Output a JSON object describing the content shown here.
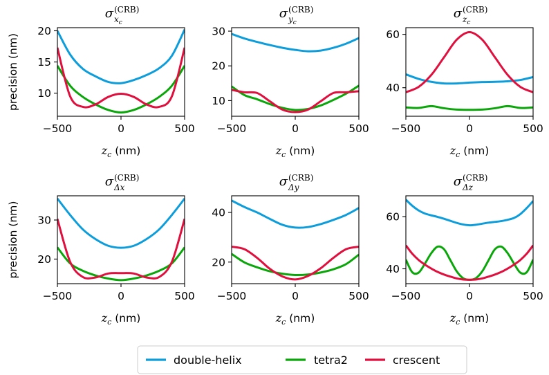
{
  "legend": {
    "placement": "bottom-center",
    "entries": [
      {
        "name": "double-helix",
        "color": "#0d9ddb"
      },
      {
        "name": "tetra2",
        "color": "#0aa60a"
      },
      {
        "name": "crescent",
        "color": "#e0103e"
      }
    ]
  },
  "chart_data": [
    {
      "type": "line",
      "title": {
        "sym": "σ",
        "sub": "x",
        "subsub": "c",
        "sup": "(CRB)"
      },
      "xlabel": {
        "var": "z",
        "varsub": "c",
        "unit": " (nm)"
      },
      "ylabel": "precision (nm)",
      "xlim": [
        -500,
        500
      ],
      "ylim": [
        6.3,
        20.5
      ],
      "xticks": [
        -500,
        0,
        500
      ],
      "xtick_labels": [
        "−500",
        "0",
        "500"
      ],
      "yticks": [
        10,
        15,
        20
      ],
      "ytick_labels": [
        "10",
        "15",
        "20"
      ],
      "x": [
        -500,
        -400,
        -300,
        -200,
        -100,
        0,
        100,
        200,
        300,
        400,
        500
      ],
      "series": [
        {
          "name": "double-helix",
          "values": [
            20.0,
            16.2,
            13.9,
            12.7,
            11.8,
            11.6,
            12.1,
            12.9,
            14.0,
            16.0,
            20.2
          ]
        },
        {
          "name": "tetra2",
          "values": [
            14.4,
            11.2,
            9.4,
            8.2,
            7.3,
            6.9,
            7.3,
            8.2,
            9.4,
            11.2,
            14.4
          ]
        },
        {
          "name": "crescent",
          "values": [
            17.3,
            9.5,
            7.8,
            8.2,
            9.4,
            9.9,
            9.4,
            8.2,
            7.8,
            9.5,
            17.3
          ]
        }
      ]
    },
    {
      "type": "line",
      "title": {
        "sym": "σ",
        "sub": "y",
        "subsub": "c",
        "sup": "(CRB)"
      },
      "xlabel": {
        "var": "z",
        "varsub": "c",
        "unit": " (nm)"
      },
      "ylabel": "",
      "xlim": [
        -500,
        500
      ],
      "ylim": [
        5.5,
        31.0
      ],
      "xticks": [
        -500,
        0,
        500
      ],
      "xtick_labels": [
        "−500",
        "0",
        "500"
      ],
      "yticks": [
        10,
        20,
        30
      ],
      "ytick_labels": [
        "10",
        "20",
        "30"
      ],
      "x": [
        -500,
        -400,
        -300,
        -200,
        -100,
        0,
        100,
        200,
        300,
        400,
        500
      ],
      "series": [
        {
          "name": "double-helix",
          "values": [
            29.2,
            27.9,
            26.9,
            26.0,
            25.2,
            24.6,
            24.2,
            24.4,
            25.2,
            26.4,
            28.0
          ]
        },
        {
          "name": "tetra2",
          "values": [
            14.1,
            11.6,
            10.4,
            9.0,
            7.9,
            7.3,
            7.6,
            8.6,
            10.2,
            12.0,
            14.3
          ]
        },
        {
          "name": "crescent",
          "values": [
            13.1,
            12.4,
            12.2,
            9.8,
            7.4,
            6.7,
            7.4,
            9.8,
            12.2,
            12.4,
            12.7
          ]
        }
      ]
    },
    {
      "type": "line",
      "title": {
        "sym": "σ",
        "sub": "z",
        "subsub": "c",
        "sup": "(CRB)"
      },
      "xlabel": {
        "var": "z",
        "varsub": "c",
        "unit": " (nm)"
      },
      "ylabel": "",
      "xlim": [
        -500,
        500
      ],
      "ylim": [
        29.3,
        62.5
      ],
      "xticks": [
        -500,
        0,
        500
      ],
      "xtick_labels": [
        "−500",
        "0",
        "500"
      ],
      "yticks": [
        40,
        60
      ],
      "ytick_labels": [
        "40",
        "60"
      ],
      "x": [
        -500,
        -400,
        -300,
        -200,
        -100,
        0,
        100,
        200,
        300,
        400,
        500
      ],
      "series": [
        {
          "name": "double-helix",
          "values": [
            45.0,
            43.3,
            42.2,
            41.6,
            41.6,
            41.9,
            42.1,
            42.2,
            42.4,
            42.9,
            44.0
          ]
        },
        {
          "name": "tetra2",
          "values": [
            32.6,
            32.4,
            33.1,
            32.3,
            31.8,
            31.7,
            31.8,
            32.3,
            33.1,
            32.4,
            32.6
          ]
        },
        {
          "name": "crescent",
          "values": [
            38.3,
            40.3,
            44.8,
            51.4,
            58.0,
            60.8,
            58.0,
            51.4,
            44.8,
            40.3,
            38.3
          ]
        }
      ]
    },
    {
      "type": "line",
      "title": {
        "sym": "σ",
        "sub": "Δx",
        "subsub": "",
        "sup": "(CRB)"
      },
      "xlabel": {
        "var": "z",
        "varsub": "c",
        "unit": " (nm)"
      },
      "ylabel": "precision (nm)",
      "xlim": [
        -500,
        500
      ],
      "ylim": [
        13.7,
        36.2
      ],
      "xticks": [
        -500,
        0,
        500
      ],
      "xtick_labels": [
        "−500",
        "0",
        "500"
      ],
      "yticks": [
        20,
        30
      ],
      "ytick_labels": [
        "20",
        "30"
      ],
      "x": [
        -500,
        -400,
        -300,
        -200,
        -100,
        0,
        100,
        200,
        300,
        400,
        500
      ],
      "series": [
        {
          "name": "double-helix",
          "values": [
            35.5,
            31.3,
            27.6,
            25.1,
            23.4,
            22.9,
            23.4,
            25.1,
            27.6,
            31.3,
            35.5
          ]
        },
        {
          "name": "tetra2",
          "values": [
            23.0,
            18.9,
            17.0,
            15.8,
            15.0,
            14.6,
            15.0,
            15.8,
            17.0,
            18.9,
            23.0
          ]
        },
        {
          "name": "crescent",
          "values": [
            30.3,
            19.3,
            15.4,
            15.3,
            16.3,
            16.4,
            16.3,
            15.3,
            15.4,
            19.3,
            30.3
          ]
        }
      ]
    },
    {
      "type": "line",
      "title": {
        "sym": "σ",
        "sub": "Δy",
        "subsub": "",
        "sup": "(CRB)"
      },
      "xlabel": {
        "var": "z",
        "varsub": "c",
        "unit": " (nm)"
      },
      "ylabel": "",
      "xlim": [
        -500,
        500
      ],
      "ylim": [
        11.3,
        46.7
      ],
      "xticks": [
        -500,
        0,
        500
      ],
      "xtick_labels": [
        "−500",
        "0",
        "500"
      ],
      "yticks": [
        20,
        40
      ],
      "ytick_labels": [
        "20",
        "40"
      ],
      "x": [
        -500,
        -400,
        -300,
        -200,
        -100,
        0,
        100,
        200,
        300,
        400,
        500
      ],
      "series": [
        {
          "name": "double-helix",
          "values": [
            44.8,
            42.2,
            40.0,
            37.4,
            35.0,
            33.9,
            34.1,
            35.3,
            37.0,
            39.0,
            41.8
          ]
        },
        {
          "name": "tetra2",
          "values": [
            23.3,
            19.9,
            17.9,
            16.3,
            15.3,
            14.8,
            15.0,
            15.8,
            17.1,
            19.2,
            23.0
          ]
        },
        {
          "name": "crescent",
          "values": [
            26.2,
            25.2,
            21.7,
            17.3,
            14.2,
            13.0,
            14.4,
            17.5,
            21.7,
            25.2,
            26.2
          ]
        }
      ]
    },
    {
      "type": "line",
      "title": {
        "sym": "σ",
        "sub": "Δz",
        "subsub": "",
        "sup": "(CRB)"
      },
      "xlabel": {
        "var": "z",
        "varsub": "c",
        "unit": " (nm)"
      },
      "ylabel": "",
      "xlim": [
        -500,
        500
      ],
      "ylim": [
        34.3,
        68.0
      ],
      "xticks": [
        -500,
        0,
        500
      ],
      "xtick_labels": [
        "−500",
        "0",
        "500"
      ],
      "yticks": [
        40,
        60
      ],
      "ytick_labels": [
        "40",
        "60"
      ],
      "x": [
        -500,
        -450,
        -400,
        -350,
        -300,
        -250,
        -200,
        -150,
        -100,
        -50,
        0,
        50,
        100,
        150,
        200,
        250,
        300,
        350,
        400,
        450,
        500
      ],
      "series": [
        {
          "name": "double-helix",
          "values": [
            66.5,
            64.2,
            62.4,
            61.2,
            60.5,
            59.9,
            59.2,
            58.4,
            57.6,
            57.0,
            56.7,
            56.9,
            57.3,
            57.7,
            58.0,
            58.3,
            58.8,
            59.5,
            61.0,
            63.3,
            66.0
          ]
        },
        {
          "name": "tetra2",
          "values": [
            43.5,
            38.7,
            38.5,
            42.0,
            46.0,
            48.5,
            47.5,
            43.3,
            39.0,
            36.4,
            35.8,
            36.4,
            39.0,
            43.3,
            47.5,
            48.5,
            46.0,
            42.0,
            38.5,
            38.7,
            43.5
          ]
        },
        {
          "name": "crescent",
          "values": [
            49.0,
            45.8,
            43.4,
            41.6,
            40.1,
            38.8,
            37.8,
            37.0,
            36.3,
            35.9,
            35.8,
            35.9,
            36.3,
            37.0,
            37.8,
            38.8,
            40.1,
            41.6,
            43.4,
            45.8,
            49.0
          ]
        }
      ]
    }
  ]
}
